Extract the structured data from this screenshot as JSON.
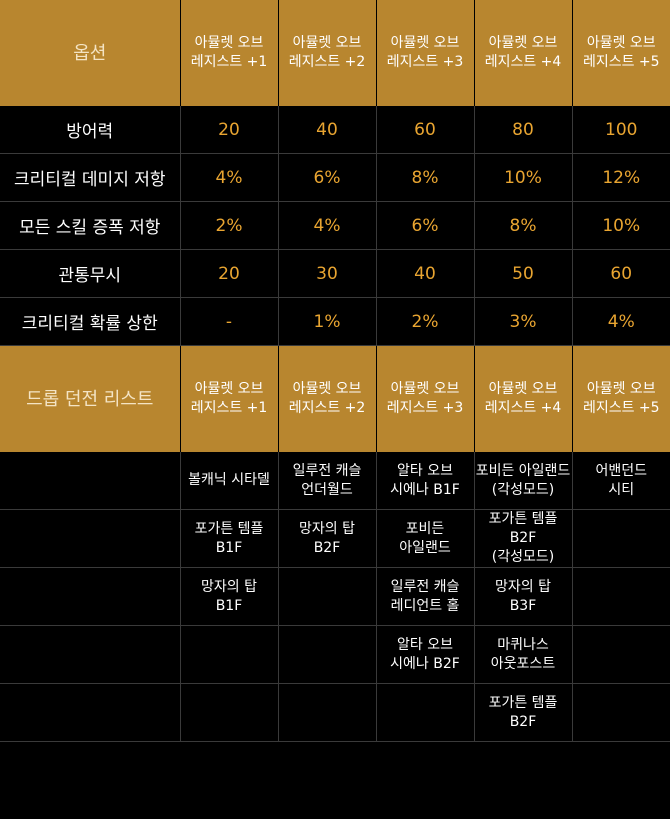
{
  "header": {
    "option_label": "옵션",
    "columns": [
      "아뮬렛 오브\n레지스트 +1",
      "아뮬렛 오브\n레지스트 +2",
      "아뮬렛 오브\n레지스트 +3",
      "아뮬렛 오브\n레지스트 +4",
      "아뮬렛 오브\n레지스트 +5"
    ]
  },
  "stats": [
    {
      "name": "방어력",
      "values": [
        "20",
        "40",
        "60",
        "80",
        "100"
      ]
    },
    {
      "name": "크리티컬 데미지 저항",
      "values": [
        "4%",
        "6%",
        "8%",
        "10%",
        "12%"
      ]
    },
    {
      "name": "모든 스킬 증폭 저항",
      "values": [
        "2%",
        "4%",
        "6%",
        "8%",
        "10%"
      ]
    },
    {
      "name": "관통무시",
      "values": [
        "20",
        "30",
        "40",
        "50",
        "60"
      ]
    },
    {
      "name": "크리티컬 확률 상한",
      "values": [
        "-",
        "1%",
        "2%",
        "3%",
        "4%"
      ]
    }
  ],
  "drop_header": {
    "label": "드롭 던전 리스트",
    "columns": [
      "아뮬렛 오브\n레지스트 +1",
      "아뮬렛 오브\n레지스트 +2",
      "아뮬렛 오브\n레지스트 +3",
      "아뮬렛 오브\n레지스트 +4",
      "아뮬렛 오브\n레지스트 +5"
    ]
  },
  "drops": [
    [
      "볼캐닉 시타델",
      "일루전 캐슬\n언더월드",
      "알타 오브\n시에나 B1F",
      "포비든 아일랜드\n(각성모드)",
      "어밴던드\n시티"
    ],
    [
      "포가튼 템플\nB1F",
      "망자의 탑\nB2F",
      "포비든\n아일랜드",
      "포가튼 템플 B2F\n(각성모드)",
      ""
    ],
    [
      "망자의 탑\nB1F",
      "",
      "일루전 캐슬\n레디언트 홀",
      "망자의 탑\nB3F",
      ""
    ],
    [
      "",
      "",
      "알타 오브\n시에나 B2F",
      "마퀴나스\n아웃포스트",
      ""
    ],
    [
      "",
      "",
      "",
      "포가튼 템플\nB2F",
      ""
    ]
  ]
}
